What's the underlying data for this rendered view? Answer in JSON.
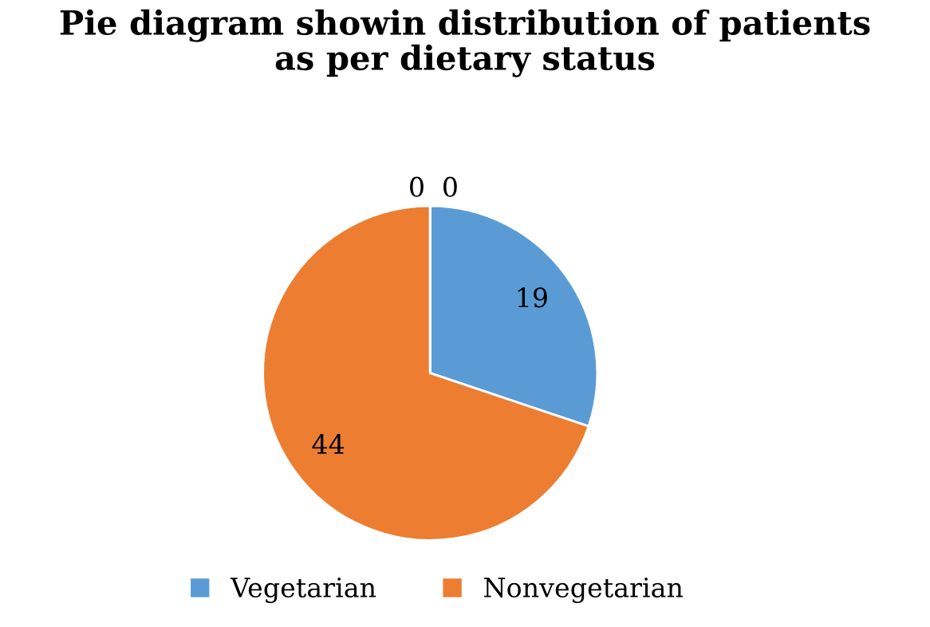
{
  "chart_data": {
    "type": "pie",
    "title": "Pie diagram showin distribution of patients\nas per dietary status",
    "categories": [
      "Vegetarian",
      "Nonvegetarian",
      null,
      null
    ],
    "values": [
      19,
      44,
      0,
      0
    ],
    "colors": [
      "#5b9bd5",
      "#ed7d31",
      "#a5a5a5",
      "#ffc000"
    ],
    "value_labels": [
      "19",
      "44",
      "0",
      "0"
    ],
    "legend": "bottom"
  }
}
